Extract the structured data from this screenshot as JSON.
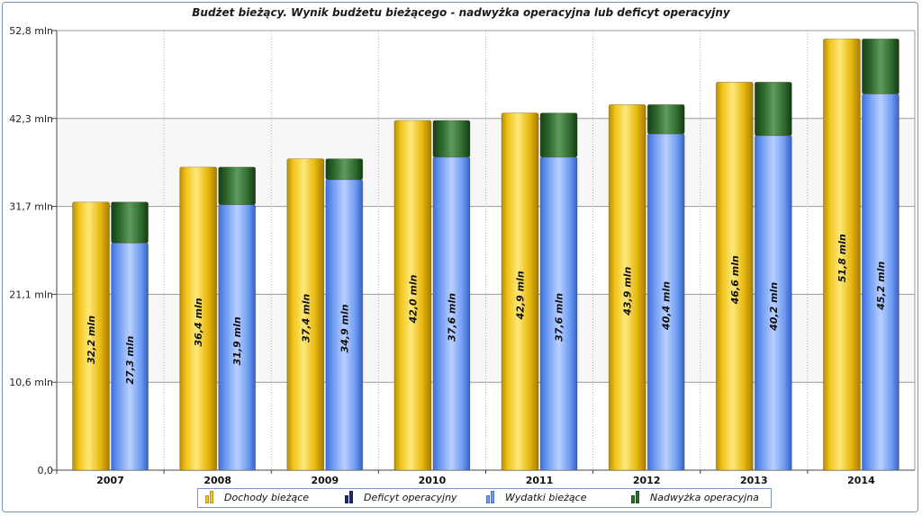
{
  "chart_data": {
    "type": "bar",
    "title": "Budżet bieżący. Wynik budżetu bieżącego - nadwyżka operacyjna lub deficyt operacyjny",
    "categories": [
      "2007",
      "2008",
      "2009",
      "2010",
      "2011",
      "2012",
      "2013",
      "2014"
    ],
    "y_ticks": [
      "0,0",
      "10,6 mln",
      "21,1 mln",
      "31,7 mln",
      "42,3 mln",
      "52,8 mln"
    ],
    "ylim": [
      0,
      52.8
    ],
    "grid": true,
    "legend_position": "bottom",
    "series": [
      {
        "name": "Dochody bieżące",
        "color": "#f2c61f",
        "values": [
          32.2,
          36.4,
          37.4,
          42.0,
          42.9,
          43.9,
          46.6,
          51.8
        ],
        "labels": [
          "32,2 mln",
          "36,4 mln",
          "37,4 mln",
          "42,0 mln",
          "42,9 mln",
          "43,9 mln",
          "46,6 mln",
          "51,8 mln"
        ]
      },
      {
        "name": "Deficyt operacyjny",
        "color": "#1f2a6e",
        "values": [
          0,
          0,
          0,
          0,
          0,
          0,
          0,
          0
        ]
      },
      {
        "name": "Wydatki bieżące",
        "color": "#6e9bf2",
        "values": [
          27.3,
          31.9,
          34.9,
          37.6,
          37.6,
          40.4,
          40.2,
          45.2
        ],
        "labels": [
          "27,3 mln",
          "31,9 mln",
          "34,9 mln",
          "37,6 mln",
          "37,6 mln",
          "40,4 mln",
          "40,2 mln",
          "45,2 mln"
        ]
      },
      {
        "name": "Nadwyżka operacyjna",
        "color": "#2f6b2f",
        "values": [
          4.9,
          4.5,
          2.5,
          4.4,
          5.3,
          3.5,
          6.4,
          6.6
        ]
      }
    ]
  }
}
